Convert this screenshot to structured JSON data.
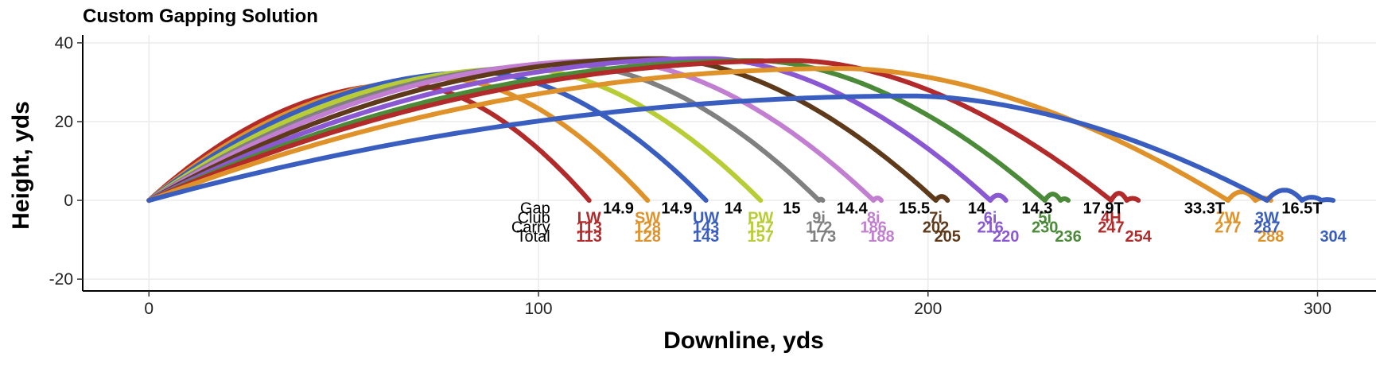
{
  "chart_data": {
    "type": "line",
    "title": "Custom Gapping Solution",
    "xlabel": "Downline, yds",
    "ylabel": "Height, yds",
    "xlim": [
      -17,
      315
    ],
    "ylim": [
      -23,
      42
    ],
    "x_ticks": [
      0,
      100,
      200,
      300
    ],
    "x_tick_labels": [
      "0",
      "100",
      "200",
      "300"
    ],
    "y_ticks": [
      -20,
      0,
      20,
      40
    ],
    "y_tick_labels": [
      "-20",
      "0",
      "20",
      "40"
    ],
    "grid": true,
    "legend": "none",
    "row_labels": {
      "gap": "Gap",
      "club": "Club",
      "carry": "Carry",
      "total": "Total"
    },
    "series": [
      {
        "club": "LW",
        "carry": 113,
        "total": 113,
        "carry_label": "113",
        "total_label": "113",
        "apex_x": 66,
        "apex_y": 29.5,
        "color": "#b22a2a",
        "rollout": []
      },
      {
        "club": "SW",
        "carry": 128,
        "total": 128,
        "carry_label": "128",
        "total_label": "128",
        "apex_x": 76,
        "apex_y": 31,
        "color": "#e0922a",
        "rollout": []
      },
      {
        "club": "UW",
        "carry": 143,
        "total": 143,
        "carry_label": "143",
        "total_label": "143",
        "apex_x": 85,
        "apex_y": 32.5,
        "color": "#3a5ebf",
        "rollout": []
      },
      {
        "club": "PW",
        "carry": 157,
        "total": 157,
        "carry_label": "157",
        "total_label": "157",
        "apex_x": 96,
        "apex_y": 33.5,
        "color": "#b8cc36",
        "rollout": []
      },
      {
        "club": "9i",
        "carry": 172,
        "total": 173,
        "carry_label": "172",
        "total_label": "173",
        "apex_x": 108,
        "apex_y": 34.5,
        "color": "#808080",
        "rollout": [
          [
            1,
            0.3
          ]
        ]
      },
      {
        "club": "8i",
        "carry": 186,
        "total": 188,
        "carry_label": "186",
        "total_label": "188",
        "apex_x": 118,
        "apex_y": 35.5,
        "color": "#c27fd2",
        "rollout": [
          [
            2,
            0.6
          ]
        ]
      },
      {
        "club": "7i",
        "carry": 202,
        "total": 205,
        "carry_label": "202",
        "total_label": "205",
        "apex_x": 131,
        "apex_y": 36,
        "color": "#5e3a1a",
        "rollout": [
          [
            3,
            1.0
          ]
        ]
      },
      {
        "club": "6i",
        "carry": 216,
        "total": 220,
        "carry_label": "216",
        "total_label": "220",
        "apex_x": 144,
        "apex_y": 36,
        "color": "#8a58d2",
        "rollout": [
          [
            4,
            1.3
          ]
        ]
      },
      {
        "club": "5i",
        "carry": 230,
        "total": 236,
        "carry_label": "230",
        "total_label": "236",
        "apex_x": 156,
        "apex_y": 35.5,
        "color": "#4a8a38",
        "rollout": [
          [
            4,
            1.6
          ],
          [
            2,
            0.4
          ]
        ]
      },
      {
        "club": "4H",
        "carry": 247,
        "total": 254,
        "carry_label": "247",
        "total_label": "254",
        "apex_x": 166,
        "apex_y": 35.5,
        "color": "#b22a2a",
        "rollout": [
          [
            4,
            1.8
          ],
          [
            3,
            0.5
          ]
        ]
      },
      {
        "club": "7W",
        "carry": 277,
        "total": 288,
        "carry_label": "277",
        "total_label": "288",
        "apex_x": 178,
        "apex_y": 33.5,
        "color": "#e0922a",
        "rollout": [
          [
            7,
            2.2
          ],
          [
            4,
            0.6
          ]
        ]
      },
      {
        "club": "3W",
        "carry": 287,
        "total": 304,
        "carry_label": "287",
        "total_label": "304",
        "apex_x": 196,
        "apex_y": 26.5,
        "color": "#3a5ebf",
        "rollout": [
          [
            9,
            2.6
          ],
          [
            5,
            0.8
          ],
          [
            3,
            0.2
          ]
        ]
      }
    ],
    "gaps": [
      "14.9",
      "14.9",
      "14",
      "15",
      "14.4",
      "15.5",
      "14",
      "14.3",
      "17.9T",
      "33.3T",
      "16.5T"
    ],
    "gap_colors": [
      "#000000",
      "#000000",
      "#4a8a38",
      "#000000",
      "#000000",
      "#000000",
      "#4a8a38",
      "#4a8a38",
      "#000000",
      "#000000",
      "#000000"
    ]
  }
}
